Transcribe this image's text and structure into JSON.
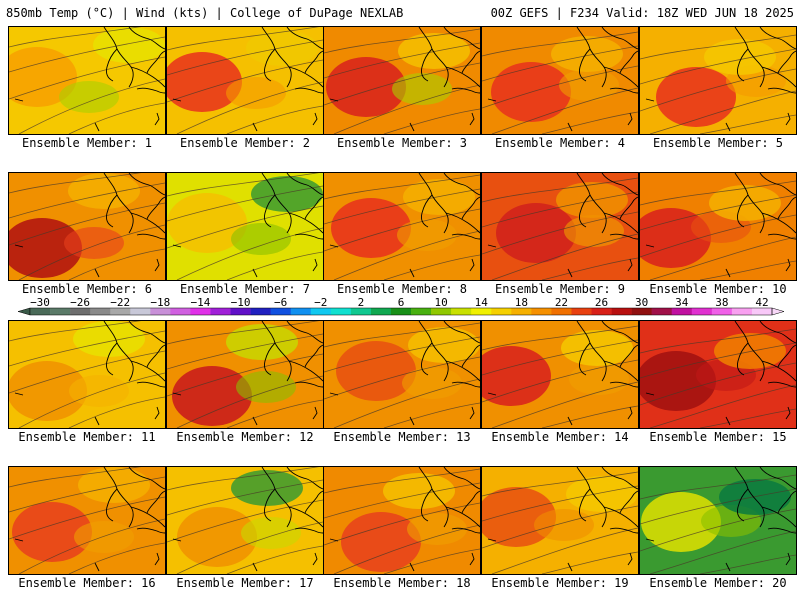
{
  "header": {
    "left_title": "850mb Temp (°C) | Wind (kts) | College of DuPage NEXLAB",
    "right_title": "00Z GEFS | F234 Valid: 18Z WED JUN 18 2025"
  },
  "panels": [
    {
      "label": "Ensemble Member: 1",
      "base": "#f5c800",
      "warm": "#f7a000",
      "cool": "#e8e000",
      "accent": "#a8d000"
    },
    {
      "label": "Ensemble Member: 2",
      "base": "#f5c000",
      "warm": "#e8301c",
      "cool": "#f0c800",
      "accent": "#f59a00"
    },
    {
      "label": "Ensemble Member: 3",
      "base": "#f08a00",
      "warm": "#d8201c",
      "cool": "#f5c000",
      "accent": "#a8d000"
    },
    {
      "label": "Ensemble Member: 4",
      "base": "#f08a00",
      "warm": "#e8301c",
      "cool": "#f5b000",
      "accent": "#f0a000"
    },
    {
      "label": "Ensemble Member: 5",
      "base": "#f5b000",
      "warm": "#e8301c",
      "cool": "#f5c800",
      "accent": "#f59a00"
    },
    {
      "label": "Ensemble Member: 6",
      "base": "#f09000",
      "warm": "#b01010",
      "cool": "#f5b000",
      "accent": "#e8401c"
    },
    {
      "label": "Ensemble Member: 7",
      "base": "#e0e000",
      "warm": "#f5c000",
      "cool": "#3a9a30",
      "accent": "#88c000"
    },
    {
      "label": "Ensemble Member: 8",
      "base": "#f09000",
      "warm": "#e8301c",
      "cool": "#f5b000",
      "accent": "#f0a000"
    },
    {
      "label": "Ensemble Member: 9",
      "base": "#e85010",
      "warm": "#d0201c",
      "cool": "#f09000",
      "accent": "#f0a000"
    },
    {
      "label": "Ensemble Member: 10",
      "base": "#f08000",
      "warm": "#d8201c",
      "cool": "#f5b000",
      "accent": "#e85010"
    },
    {
      "label": "Ensemble Member: 11",
      "base": "#f5c000",
      "warm": "#f09000",
      "cool": "#e8e000",
      "accent": "#f5b000"
    },
    {
      "label": "Ensemble Member: 12",
      "base": "#f09000",
      "warm": "#c8181c",
      "cool": "#c8d800",
      "accent": "#88c000"
    },
    {
      "label": "Ensemble Member: 13",
      "base": "#f09000",
      "warm": "#e85010",
      "cool": "#f5c000",
      "accent": "#f0a000"
    },
    {
      "label": "Ensemble Member: 14",
      "base": "#f09000",
      "warm": "#d8201c",
      "cool": "#f5c800",
      "accent": "#f0a000"
    },
    {
      "label": "Ensemble Member: 15",
      "base": "#e03018",
      "warm": "#a01010",
      "cool": "#f08000",
      "accent": "#c01818"
    },
    {
      "label": "Ensemble Member: 16",
      "base": "#f09000",
      "warm": "#e8401c",
      "cool": "#f5b000",
      "accent": "#f0a000"
    },
    {
      "label": "Ensemble Member: 17",
      "base": "#f5c000",
      "warm": "#f09000",
      "cool": "#3a9a30",
      "accent": "#c8d800"
    },
    {
      "label": "Ensemble Member: 18",
      "base": "#f08a00",
      "warm": "#e8401c",
      "cool": "#f5c000",
      "accent": "#f0a000"
    },
    {
      "label": "Ensemble Member: 19",
      "base": "#f5b000",
      "warm": "#e85010",
      "cool": "#f5c800",
      "accent": "#f09000"
    },
    {
      "label": "Ensemble Member: 20",
      "base": "#3a9a30",
      "warm": "#e0e000",
      "cool": "#0a7a40",
      "accent": "#88c000"
    }
  ],
  "colorbar": {
    "tick_labels": [
      "−30",
      "−26",
      "−22",
      "−18",
      "−14",
      "−10",
      "−6",
      "−2",
      "2",
      "6",
      "10",
      "14",
      "18",
      "22",
      "26",
      "30",
      "34",
      "38",
      "42"
    ],
    "colors": [
      "#4a6a58",
      "#5a7a68",
      "#6e6e6e",
      "#8a8a8a",
      "#a8a8a8",
      "#c8c8d8",
      "#c890d8",
      "#d060e0",
      "#e030e8",
      "#a020d8",
      "#6010c8",
      "#2020c0",
      "#1050e0",
      "#1090f0",
      "#10c8f0",
      "#10e0d0",
      "#10c890",
      "#10a850",
      "#189018",
      "#48b010",
      "#90c800",
      "#c8e000",
      "#f0f000",
      "#f5d000",
      "#f5b000",
      "#f59000",
      "#f07000",
      "#e84010",
      "#d82018",
      "#b81010",
      "#901010",
      "#a01048",
      "#c010a0",
      "#e030d0",
      "#f060e8",
      "#f8a0f0",
      "#f8c8f8"
    ]
  }
}
